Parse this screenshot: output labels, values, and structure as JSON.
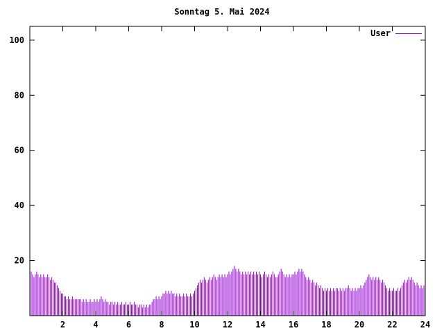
{
  "title": "Sonntag 5. Mai 2024",
  "legend": {
    "label": "User",
    "color": "#9400d3"
  },
  "chart_data": {
    "type": "bar",
    "title": "Sonntag 5. Mai 2024",
    "xlabel": "",
    "ylabel": "",
    "xlim": [
      0,
      24
    ],
    "ylim": [
      0,
      105
    ],
    "xticks": [
      2,
      4,
      6,
      8,
      10,
      12,
      14,
      16,
      18,
      20,
      22,
      24
    ],
    "yticks": [
      20,
      40,
      60,
      80,
      100
    ],
    "x_step": 0.0833333,
    "grid": false,
    "legend_position": "top-right",
    "series": [
      {
        "name": "User",
        "color": "#9400d3",
        "values": [
          15,
          16,
          15,
          14,
          15,
          16,
          15,
          14,
          15,
          14,
          15,
          14,
          14,
          15,
          14,
          13,
          14,
          13,
          12,
          12,
          11,
          10,
          9,
          8,
          8,
          7,
          7,
          6,
          7,
          6,
          6,
          7,
          6,
          6,
          6,
          6,
          6,
          6,
          5,
          6,
          5,
          6,
          5,
          5,
          6,
          5,
          5,
          6,
          5,
          6,
          5,
          6,
          7,
          6,
          5,
          6,
          5,
          5,
          4,
          5,
          5,
          4,
          5,
          4,
          5,
          4,
          4,
          5,
          4,
          4,
          5,
          4,
          4,
          5,
          4,
          4,
          5,
          4,
          4,
          3,
          4,
          4,
          3,
          4,
          3,
          4,
          3,
          4,
          4,
          5,
          6,
          6,
          7,
          6,
          7,
          6,
          7,
          8,
          8,
          9,
          8,
          9,
          8,
          9,
          8,
          8,
          7,
          8,
          7,
          8,
          7,
          7,
          8,
          7,
          8,
          7,
          7,
          8,
          7,
          8,
          9,
          10,
          11,
          12,
          13,
          12,
          13,
          14,
          13,
          12,
          13,
          14,
          13,
          14,
          15,
          14,
          13,
          14,
          15,
          14,
          15,
          14,
          15,
          14,
          15,
          16,
          15,
          16,
          17,
          18,
          17,
          16,
          17,
          16,
          15,
          16,
          15,
          16,
          15,
          16,
          15,
          16,
          15,
          16,
          15,
          16,
          15,
          16,
          15,
          14,
          15,
          16,
          15,
          14,
          15,
          14,
          15,
          16,
          15,
          14,
          14,
          15,
          16,
          17,
          16,
          15,
          14,
          15,
          14,
          15,
          14,
          15,
          15,
          16,
          15,
          16,
          17,
          16,
          17,
          16,
          15,
          14,
          13,
          14,
          13,
          12,
          13,
          12,
          11,
          12,
          11,
          10,
          11,
          10,
          9,
          10,
          9,
          10,
          9,
          10,
          9,
          10,
          9,
          10,
          10,
          9,
          10,
          9,
          10,
          9,
          10,
          10,
          11,
          10,
          9,
          10,
          9,
          10,
          9,
          10,
          10,
          11,
          10,
          11,
          12,
          13,
          14,
          15,
          14,
          13,
          14,
          13,
          14,
          13,
          14,
          13,
          12,
          13,
          12,
          11,
          10,
          9,
          10,
          9,
          9,
          10,
          9,
          9,
          10,
          9,
          10,
          11,
          12,
          13,
          12,
          13,
          14,
          13,
          14,
          13,
          12,
          11,
          12,
          11,
          10,
          11,
          10,
          11
        ]
      }
    ]
  }
}
